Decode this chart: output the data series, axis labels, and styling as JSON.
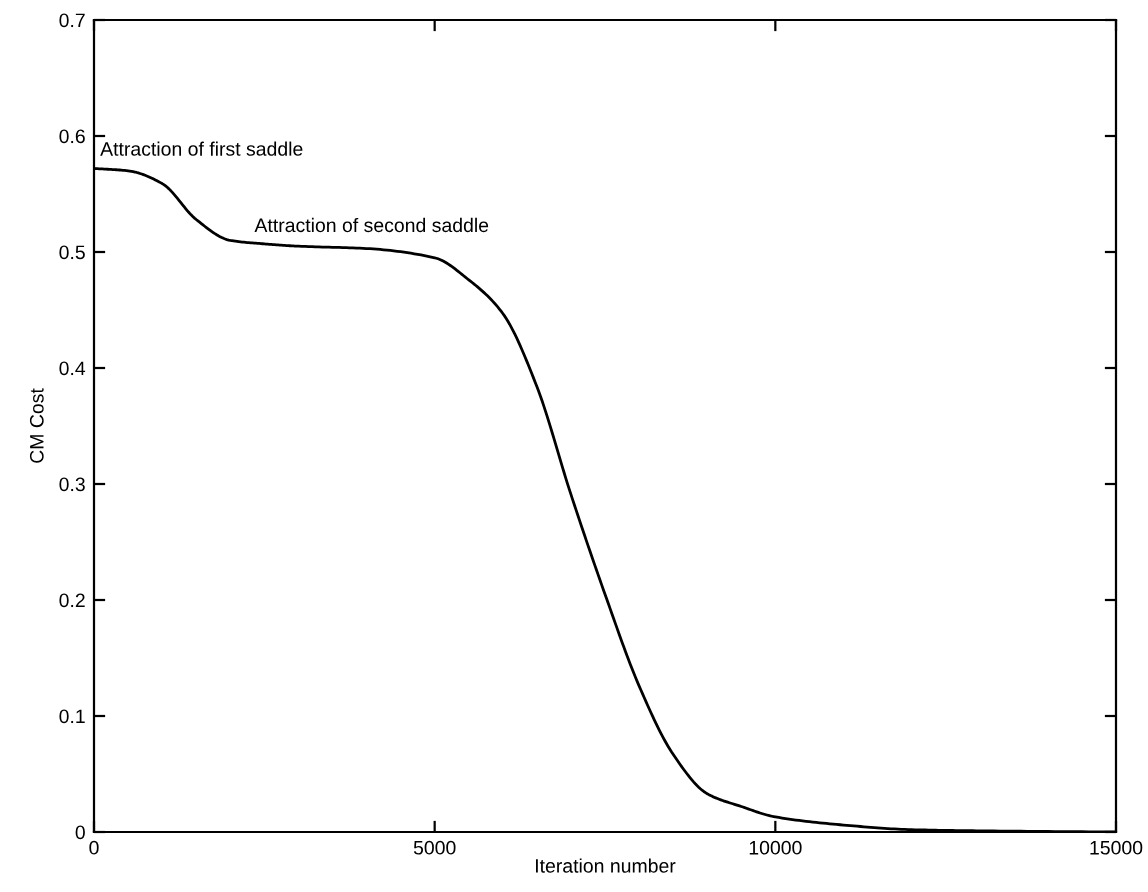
{
  "chart_data": {
    "type": "line",
    "xlabel": "Iteration number",
    "ylabel": "CM Cost",
    "x": [
      0,
      500,
      1000,
      1500,
      2000,
      2500,
      3000,
      4000,
      5000,
      5500,
      6000,
      6500,
      7000,
      7500,
      8000,
      8500,
      9000,
      9500,
      10000,
      11000,
      12000,
      13000,
      15000
    ],
    "series": [
      {
        "color": "#000000",
        "values": [
          0.572,
          0.57,
          0.559,
          0.528,
          0.51,
          0.507,
          0.505,
          0.503,
          0.495,
          0.476,
          0.447,
          0.384,
          0.291,
          0.205,
          0.126,
          0.067,
          0.033,
          0.022,
          0.013,
          0.006,
          0.002,
          0.001,
          0
        ]
      }
    ],
    "xlim": [
      0,
      15000
    ],
    "ylim": [
      0,
      0.7
    ],
    "xticks": [
      0,
      5000,
      10000,
      15000
    ],
    "yticks": [
      0,
      0.1,
      0.2,
      0.3,
      0.4,
      0.5,
      0.6,
      0.7
    ],
    "annotations": [
      "Attraction of first saddle",
      "Attraction of second saddle"
    ],
    "grid": false,
    "marker": "none",
    "line_style": "solid"
  }
}
